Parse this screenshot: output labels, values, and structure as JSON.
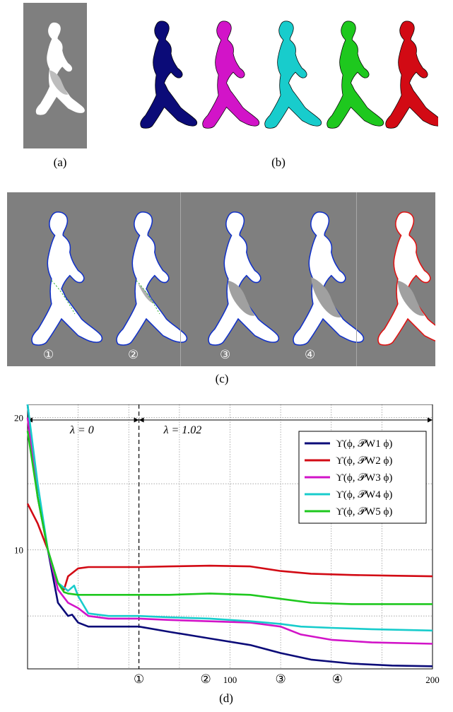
{
  "panels": {
    "a": {
      "caption": "(a)"
    },
    "b": {
      "caption": "(b)",
      "colors": [
        "#0b0b78",
        "#d214c8",
        "#18cccc",
        "#1ec81e",
        "#d20a14"
      ]
    },
    "c": {
      "caption": "(c)",
      "labels": [
        "①",
        "②",
        "③",
        "④"
      ],
      "contour_color": "#1030c8",
      "final_color": "#e01010",
      "guide_color": "#30b030"
    },
    "d": {
      "caption": "(d)"
    }
  },
  "chart_data": {
    "type": "line",
    "xlim": [
      0,
      200
    ],
    "ylim": [
      1,
      21
    ],
    "x_ticks": [
      {
        "value": 55,
        "label": "①"
      },
      {
        "value": 88,
        "label": "②"
      },
      {
        "value": 100,
        "label": "100"
      },
      {
        "value": 125,
        "label": "③"
      },
      {
        "value": 153,
        "label": "④"
      },
      {
        "value": 200,
        "label": "200"
      }
    ],
    "y_ticks": [
      10,
      20
    ],
    "grid": true,
    "annotations": [
      {
        "text": "λ = 0",
        "x_range": [
          0,
          55
        ]
      },
      {
        "text": "λ = 1.02",
        "x_range": [
          55,
          200
        ]
      }
    ],
    "divider_x": 55,
    "legend_position": "top-right",
    "series": [
      {
        "name": "ϒ(ϕ, 𝒫W1 ϕ)",
        "color": "#0b0b78",
        "x": [
          0,
          5,
          10,
          15,
          20,
          22,
          25,
          30,
          40,
          55,
          70,
          90,
          110,
          125,
          140,
          160,
          180,
          200
        ],
        "y": [
          21,
          14,
          10,
          6,
          5.0,
          5.1,
          4.5,
          4.2,
          4.2,
          4.2,
          3.8,
          3.3,
          2.8,
          2.2,
          1.7,
          1.4,
          1.25,
          1.2
        ]
      },
      {
        "name": "ϒ(ϕ, 𝒫W2 ϕ)",
        "color": "#d20a14",
        "x": [
          0,
          5,
          10,
          15,
          18,
          20,
          25,
          30,
          40,
          55,
          70,
          90,
          110,
          125,
          140,
          160,
          180,
          200
        ],
        "y": [
          13.5,
          12,
          10,
          7.5,
          7.0,
          8.0,
          8.6,
          8.7,
          8.7,
          8.7,
          8.75,
          8.8,
          8.75,
          8.4,
          8.2,
          8.1,
          8.05,
          8.0
        ]
      },
      {
        "name": "ϒ(ϕ, 𝒫W3 ϕ)",
        "color": "#d214c8",
        "x": [
          0,
          5,
          10,
          15,
          20,
          25,
          30,
          40,
          55,
          70,
          90,
          110,
          125,
          135,
          150,
          170,
          200
        ],
        "y": [
          20,
          14,
          10,
          7,
          6.0,
          5.6,
          5.0,
          4.8,
          4.8,
          4.7,
          4.6,
          4.5,
          4.2,
          3.6,
          3.2,
          3.0,
          2.9
        ]
      },
      {
        "name": "ϒ(ϕ, 𝒫W4 ϕ)",
        "color": "#18cccc",
        "x": [
          0,
          5,
          10,
          15,
          20,
          23,
          25,
          30,
          40,
          55,
          70,
          90,
          110,
          125,
          135,
          150,
          170,
          200
        ],
        "y": [
          21,
          15,
          10,
          7.5,
          6.9,
          7.3,
          6.5,
          5.2,
          5.0,
          5.0,
          4.9,
          4.8,
          4.6,
          4.4,
          4.2,
          4.1,
          4.0,
          3.9
        ]
      },
      {
        "name": "ϒ(ϕ, 𝒫W5 ϕ)",
        "color": "#1ec81e",
        "x": [
          0,
          5,
          10,
          15,
          18,
          20,
          25,
          30,
          40,
          55,
          70,
          90,
          110,
          125,
          140,
          160,
          180,
          200
        ],
        "y": [
          19,
          14,
          10,
          7.5,
          6.8,
          6.7,
          6.6,
          6.6,
          6.6,
          6.6,
          6.6,
          6.7,
          6.6,
          6.3,
          6.0,
          5.9,
          5.9,
          5.9
        ]
      }
    ]
  }
}
